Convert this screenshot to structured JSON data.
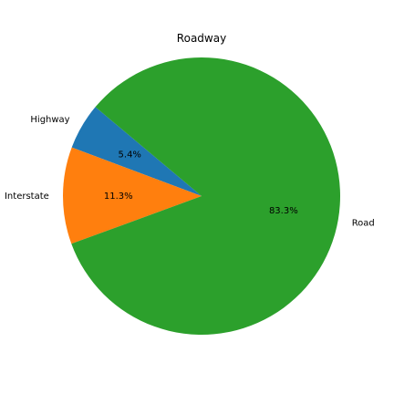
{
  "chart_data": {
    "type": "pie",
    "title": "Roadway",
    "categories": [
      "Highway",
      "Interstate",
      "Road"
    ],
    "values": [
      5.4,
      11.3,
      83.3
    ],
    "value_labels": [
      "5.4%",
      "11.3%",
      "83.3%"
    ],
    "colors": [
      "#1f77b4",
      "#ff7f0e",
      "#2ca02c"
    ],
    "start_angle_deg": 140,
    "direction": "counterclockwise"
  }
}
